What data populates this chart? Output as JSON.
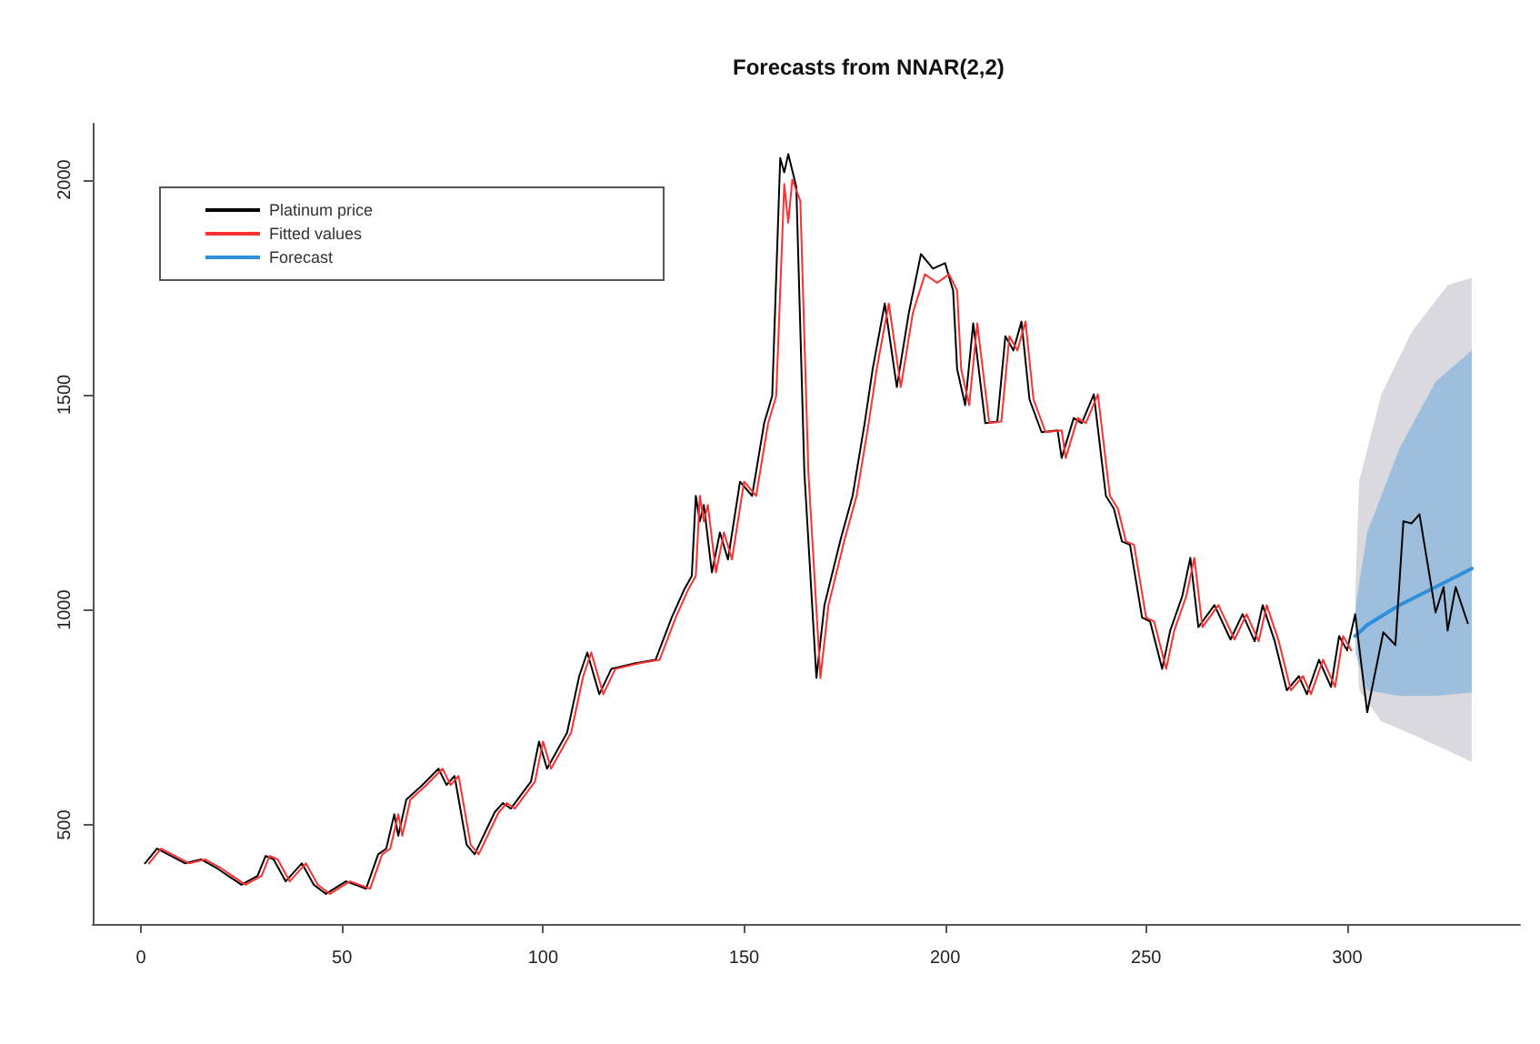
{
  "chart_data": {
    "type": "line",
    "title": "Forecasts from NNAR(2,2)",
    "xlim": [
      -12,
      343
    ],
    "ylim": [
      270,
      2130
    ],
    "xticks": [
      0,
      50,
      100,
      150,
      200,
      250,
      300
    ],
    "yticks": [
      500,
      1000,
      1500,
      2000
    ],
    "grid": false,
    "legend": "top left",
    "marker": "none",
    "line_style": "solid",
    "series": [
      {
        "color": "#d9d9df",
        "x": [
          302,
          303,
          308.5,
          316,
          325,
          331
        ],
        "values": [
          null,
          null,
          null,
          null,
          null,
          null
        ],
        "lower": [
          1030,
          813,
          741,
          711,
          673,
          647
        ],
        "upper": [
          1030,
          1300,
          1500,
          1645,
          1755,
          1772
        ]
      },
      {
        "name": "Forecast",
        "color": "#2f8fdb",
        "x": [
          302,
          305,
          313,
          322,
          331
        ],
        "values": [
          939,
          965,
          1011,
          1053,
          1096
        ],
        "lower": [
          900,
          813,
          800,
          800,
          808
        ],
        "upper": [
          1000,
          1180,
          1375,
          1530,
          1603
        ]
      },
      {
        "name": "Platinum price",
        "color": "#000000",
        "x": [
          1,
          4,
          11,
          15,
          19,
          25,
          29,
          31,
          33,
          36,
          40,
          43,
          46,
          51,
          56,
          59,
          61,
          63,
          64,
          66,
          70,
          74,
          76,
          78,
          81,
          83,
          88,
          90,
          92,
          97,
          99,
          101,
          106,
          109,
          111,
          114,
          117,
          123,
          128,
          132,
          135,
          137,
          138,
          139,
          140,
          142,
          144,
          146,
          149,
          152,
          155,
          157,
          159,
          160,
          161,
          163,
          165,
          168,
          170,
          174,
          177,
          180,
          182,
          185,
          188,
          191,
          194,
          197,
          200,
          202,
          203,
          205,
          207,
          210,
          213,
          215,
          217,
          219,
          221,
          224,
          228,
          229,
          232,
          234,
          237,
          240,
          242,
          244,
          246,
          249,
          251,
          254,
          256,
          259,
          261,
          263,
          267,
          271,
          274,
          277,
          279,
          282,
          285,
          288,
          290,
          293,
          296,
          298,
          300,
          302,
          305,
          309,
          312,
          314,
          316,
          318,
          322,
          324,
          325,
          327,
          330
        ],
        "values": [
          411,
          445,
          411,
          420,
          399,
          361,
          382,
          428,
          420,
          369,
          411,
          361,
          340,
          369,
          352,
          432,
          445,
          525,
          475,
          559,
          593,
          631,
          593,
          614,
          454,
          432,
          530,
          551,
          538,
          601,
          694,
          631,
          715,
          846,
          901,
          804,
          863,
          876,
          884,
          982,
          1045,
          1079,
          1265,
          1206,
          1244,
          1087,
          1180,
          1117,
          1298,
          1265,
          1434,
          1497,
          2050,
          2017,
          2059,
          1983,
          1320,
          842,
          1011,
          1163,
          1265,
          1434,
          1560,
          1712,
          1518,
          1691,
          1827,
          1793,
          1806,
          1742,
          1560,
          1476,
          1666,
          1434,
          1438,
          1636,
          1603,
          1670,
          1489,
          1413,
          1417,
          1353,
          1446,
          1434,
          1501,
          1265,
          1235,
          1159,
          1151,
          982,
          973,
          863,
          952,
          1032,
          1121,
          960,
          1011,
          931,
          990,
          927,
          1011,
          927,
          813,
          846,
          804,
          884,
          821,
          939,
          906,
          990,
          762,
          948,
          918,
          1206,
          1201,
          1222,
          994,
          1053,
          952,
          1053,
          969
        ]
      },
      {
        "name": "Fitted values",
        "color": "#ff3030",
        "x": [
          2,
          5,
          12,
          16,
          20,
          26,
          30,
          32,
          34,
          37,
          41,
          44,
          47,
          52,
          57,
          60,
          62,
          64,
          65,
          67,
          71,
          75,
          77,
          79,
          82,
          84,
          89,
          91,
          93,
          98,
          100,
          102,
          107,
          110,
          112,
          115,
          118,
          124,
          129,
          133,
          136,
          138,
          139,
          140,
          141,
          143,
          145,
          147,
          150,
          153,
          156,
          158,
          160,
          161,
          162,
          164,
          166,
          169,
          171,
          175,
          178,
          181,
          183,
          186,
          189,
          192,
          195,
          198,
          201,
          203,
          204,
          206,
          208,
          211,
          214,
          216,
          218,
          220,
          222,
          225,
          229,
          230,
          233,
          235,
          238,
          241,
          243,
          245,
          247,
          250,
          252,
          255,
          257,
          260,
          262,
          264,
          268,
          272,
          275,
          278,
          280,
          283,
          286,
          289,
          291,
          294,
          297,
          299,
          301
        ],
        "values": [
          411,
          445,
          411,
          420,
          399,
          361,
          382,
          428,
          420,
          369,
          411,
          361,
          340,
          369,
          352,
          432,
          445,
          525,
          475,
          559,
          593,
          631,
          593,
          614,
          454,
          432,
          530,
          551,
          538,
          601,
          694,
          631,
          715,
          846,
          901,
          804,
          863,
          876,
          884,
          982,
          1045,
          1079,
          1265,
          1206,
          1244,
          1087,
          1180,
          1117,
          1298,
          1265,
          1434,
          1497,
          1990,
          1900,
          2000,
          1950,
          1320,
          842,
          1011,
          1163,
          1265,
          1434,
          1560,
          1712,
          1518,
          1691,
          1780,
          1760,
          1780,
          1742,
          1560,
          1476,
          1666,
          1434,
          1438,
          1636,
          1603,
          1670,
          1489,
          1413,
          1417,
          1353,
          1446,
          1434,
          1501,
          1265,
          1235,
          1159,
          1151,
          982,
          973,
          863,
          952,
          1032,
          1121,
          960,
          1011,
          931,
          990,
          927,
          1011,
          927,
          813,
          846,
          804,
          884,
          821,
          939,
          906
        ]
      }
    ]
  }
}
